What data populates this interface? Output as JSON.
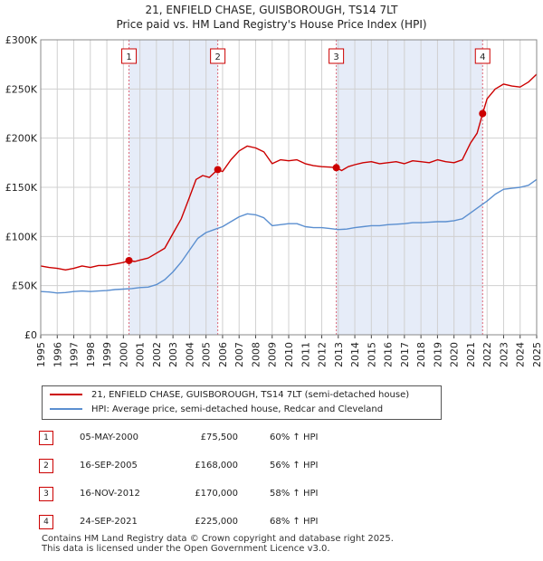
{
  "title_line1": "21, ENFIELD CHASE, GUISBOROUGH, TS14 7LT",
  "title_line2": "Price paid vs. HM Land Registry's House Price Index (HPI)",
  "legend": {
    "property_label": "21, ENFIELD CHASE, GUISBOROUGH, TS14 7LT (semi-detached house)",
    "hpi_label": "HPI: Average price, semi-detached house, Redcar and Cleveland"
  },
  "colors": {
    "property": "#cc0000",
    "hpi": "#5b8fd0",
    "shade": "#e6ecf8",
    "vline": "#dd6677",
    "grid": "#d0d0d0"
  },
  "sales": [
    {
      "num": "1",
      "date": "05-MAY-2000",
      "price": "£75,500",
      "hpi_change": "60% ↑ HPI"
    },
    {
      "num": "2",
      "date": "16-SEP-2005",
      "price": "£168,000",
      "hpi_change": "56% ↑ HPI"
    },
    {
      "num": "3",
      "date": "16-NOV-2012",
      "price": "£170,000",
      "hpi_change": "58% ↑ HPI"
    },
    {
      "num": "4",
      "date": "24-SEP-2021",
      "price": "£225,000",
      "hpi_change": "68% ↑ HPI"
    }
  ],
  "footer_line1": "Contains HM Land Registry data © Crown copyright and database right 2025.",
  "footer_line2": "This data is licensed under the Open Government Licence v3.0.",
  "chart_data": {
    "type": "line",
    "x_range": [
      1995,
      2025
    ],
    "ylim": [
      0,
      300000
    ],
    "y_ticks": [
      0,
      50000,
      100000,
      150000,
      200000,
      250000,
      300000
    ],
    "y_tick_labels": [
      "£0",
      "£50K",
      "£100K",
      "£150K",
      "£200K",
      "£250K",
      "£300K"
    ],
    "x_ticks": [
      1995,
      1996,
      1997,
      1998,
      1999,
      2000,
      2001,
      2002,
      2003,
      2004,
      2005,
      2006,
      2007,
      2008,
      2009,
      2010,
      2011,
      2012,
      2013,
      2014,
      2015,
      2016,
      2017,
      2018,
      2019,
      2020,
      2021,
      2022,
      2023,
      2024,
      2025
    ],
    "x_tick_labels": [
      "1995",
      "1996",
      "1997",
      "1998",
      "1999",
      "2000",
      "2001",
      "2002",
      "2003",
      "2004",
      "2005",
      "2006",
      "2007",
      "2008",
      "2009",
      "2010",
      "2011",
      "2012",
      "2013",
      "2014",
      "2015",
      "2016",
      "2017",
      "2018",
      "2019",
      "2020",
      "2021",
      "2022",
      "2023",
      "2024",
      "2025"
    ],
    "sale_markers": [
      {
        "label": "1",
        "x": 2000.34,
        "y": 75500
      },
      {
        "label": "2",
        "x": 2005.71,
        "y": 168000
      },
      {
        "label": "3",
        "x": 2012.88,
        "y": 170000
      },
      {
        "label": "4",
        "x": 2021.73,
        "y": 225000
      }
    ],
    "series": [
      {
        "name": "21, ENFIELD CHASE, GUISBOROUGH, TS14 7LT (semi-detached house)",
        "color": "#cc0000",
        "points": [
          [
            1995.0,
            70000
          ],
          [
            1995.5,
            68500
          ],
          [
            1996.0,
            67500
          ],
          [
            1996.5,
            66000
          ],
          [
            1997.0,
            67500
          ],
          [
            1997.5,
            70000
          ],
          [
            1998.0,
            68500
          ],
          [
            1998.5,
            70500
          ],
          [
            1999.0,
            70500
          ],
          [
            1999.5,
            72000
          ],
          [
            2000.0,
            73500
          ],
          [
            2000.34,
            75500
          ],
          [
            2000.7,
            74500
          ],
          [
            2001.0,
            76000
          ],
          [
            2001.5,
            78000
          ],
          [
            2002.0,
            83000
          ],
          [
            2002.5,
            88000
          ],
          [
            2003.0,
            103000
          ],
          [
            2003.5,
            118000
          ],
          [
            2004.0,
            140000
          ],
          [
            2004.4,
            158000
          ],
          [
            2004.8,
            162000
          ],
          [
            2005.2,
            160000
          ],
          [
            2005.71,
            168000
          ],
          [
            2006.0,
            166000
          ],
          [
            2006.5,
            178000
          ],
          [
            2007.0,
            187000
          ],
          [
            2007.5,
            192000
          ],
          [
            2008.0,
            190000
          ],
          [
            2008.5,
            186000
          ],
          [
            2009.0,
            174000
          ],
          [
            2009.5,
            178000
          ],
          [
            2010.0,
            177000
          ],
          [
            2010.5,
            178000
          ],
          [
            2011.0,
            174000
          ],
          [
            2011.5,
            172000
          ],
          [
            2012.0,
            171000
          ],
          [
            2012.5,
            170500
          ],
          [
            2012.88,
            170000
          ],
          [
            2013.2,
            167000
          ],
          [
            2013.6,
            171000
          ],
          [
            2014.0,
            173000
          ],
          [
            2014.5,
            175000
          ],
          [
            2015.0,
            176000
          ],
          [
            2015.5,
            174000
          ],
          [
            2016.0,
            175000
          ],
          [
            2016.5,
            176000
          ],
          [
            2017.0,
            174000
          ],
          [
            2017.5,
            177000
          ],
          [
            2018.0,
            176000
          ],
          [
            2018.5,
            175000
          ],
          [
            2019.0,
            178000
          ],
          [
            2019.5,
            176000
          ],
          [
            2020.0,
            175000
          ],
          [
            2020.5,
            178000
          ],
          [
            2021.0,
            195000
          ],
          [
            2021.4,
            205000
          ],
          [
            2021.73,
            225000
          ],
          [
            2022.0,
            240000
          ],
          [
            2022.5,
            250000
          ],
          [
            2023.0,
            255000
          ],
          [
            2023.5,
            253000
          ],
          [
            2024.0,
            252000
          ],
          [
            2024.5,
            257000
          ],
          [
            2025.0,
            265000
          ]
        ]
      },
      {
        "name": "HPI: Average price, semi-detached house, Redcar and Cleveland",
        "color": "#5b8fd0",
        "points": [
          [
            1995.0,
            44000
          ],
          [
            1995.5,
            43500
          ],
          [
            1996.0,
            42500
          ],
          [
            1996.5,
            43000
          ],
          [
            1997.0,
            44000
          ],
          [
            1997.5,
            44500
          ],
          [
            1998.0,
            44000
          ],
          [
            1998.5,
            44500
          ],
          [
            1999.0,
            45000
          ],
          [
            1999.5,
            46000
          ],
          [
            2000.0,
            46500
          ],
          [
            2000.5,
            47000
          ],
          [
            2001.0,
            48000
          ],
          [
            2001.5,
            48500
          ],
          [
            2002.0,
            51000
          ],
          [
            2002.5,
            56000
          ],
          [
            2003.0,
            64000
          ],
          [
            2003.5,
            74000
          ],
          [
            2004.0,
            86000
          ],
          [
            2004.5,
            98000
          ],
          [
            2005.0,
            104000
          ],
          [
            2005.5,
            107000
          ],
          [
            2006.0,
            110000
          ],
          [
            2006.5,
            115000
          ],
          [
            2007.0,
            120000
          ],
          [
            2007.5,
            123000
          ],
          [
            2008.0,
            122000
          ],
          [
            2008.5,
            119000
          ],
          [
            2009.0,
            111000
          ],
          [
            2009.5,
            112000
          ],
          [
            2010.0,
            113000
          ],
          [
            2010.5,
            113000
          ],
          [
            2011.0,
            110000
          ],
          [
            2011.5,
            109000
          ],
          [
            2012.0,
            109000
          ],
          [
            2012.5,
            108000
          ],
          [
            2013.0,
            107000
          ],
          [
            2013.5,
            107500
          ],
          [
            2014.0,
            109000
          ],
          [
            2014.5,
            110000
          ],
          [
            2015.0,
            111000
          ],
          [
            2015.5,
            111000
          ],
          [
            2016.0,
            112000
          ],
          [
            2016.5,
            112500
          ],
          [
            2017.0,
            113000
          ],
          [
            2017.5,
            114000
          ],
          [
            2018.0,
            114000
          ],
          [
            2018.5,
            114500
          ],
          [
            2019.0,
            115000
          ],
          [
            2019.5,
            115000
          ],
          [
            2020.0,
            116000
          ],
          [
            2020.5,
            118000
          ],
          [
            2021.0,
            124000
          ],
          [
            2021.5,
            130000
          ],
          [
            2022.0,
            136000
          ],
          [
            2022.5,
            143000
          ],
          [
            2023.0,
            148000
          ],
          [
            2023.5,
            149000
          ],
          [
            2024.0,
            150000
          ],
          [
            2024.5,
            152000
          ],
          [
            2025.0,
            158000
          ]
        ]
      }
    ]
  }
}
